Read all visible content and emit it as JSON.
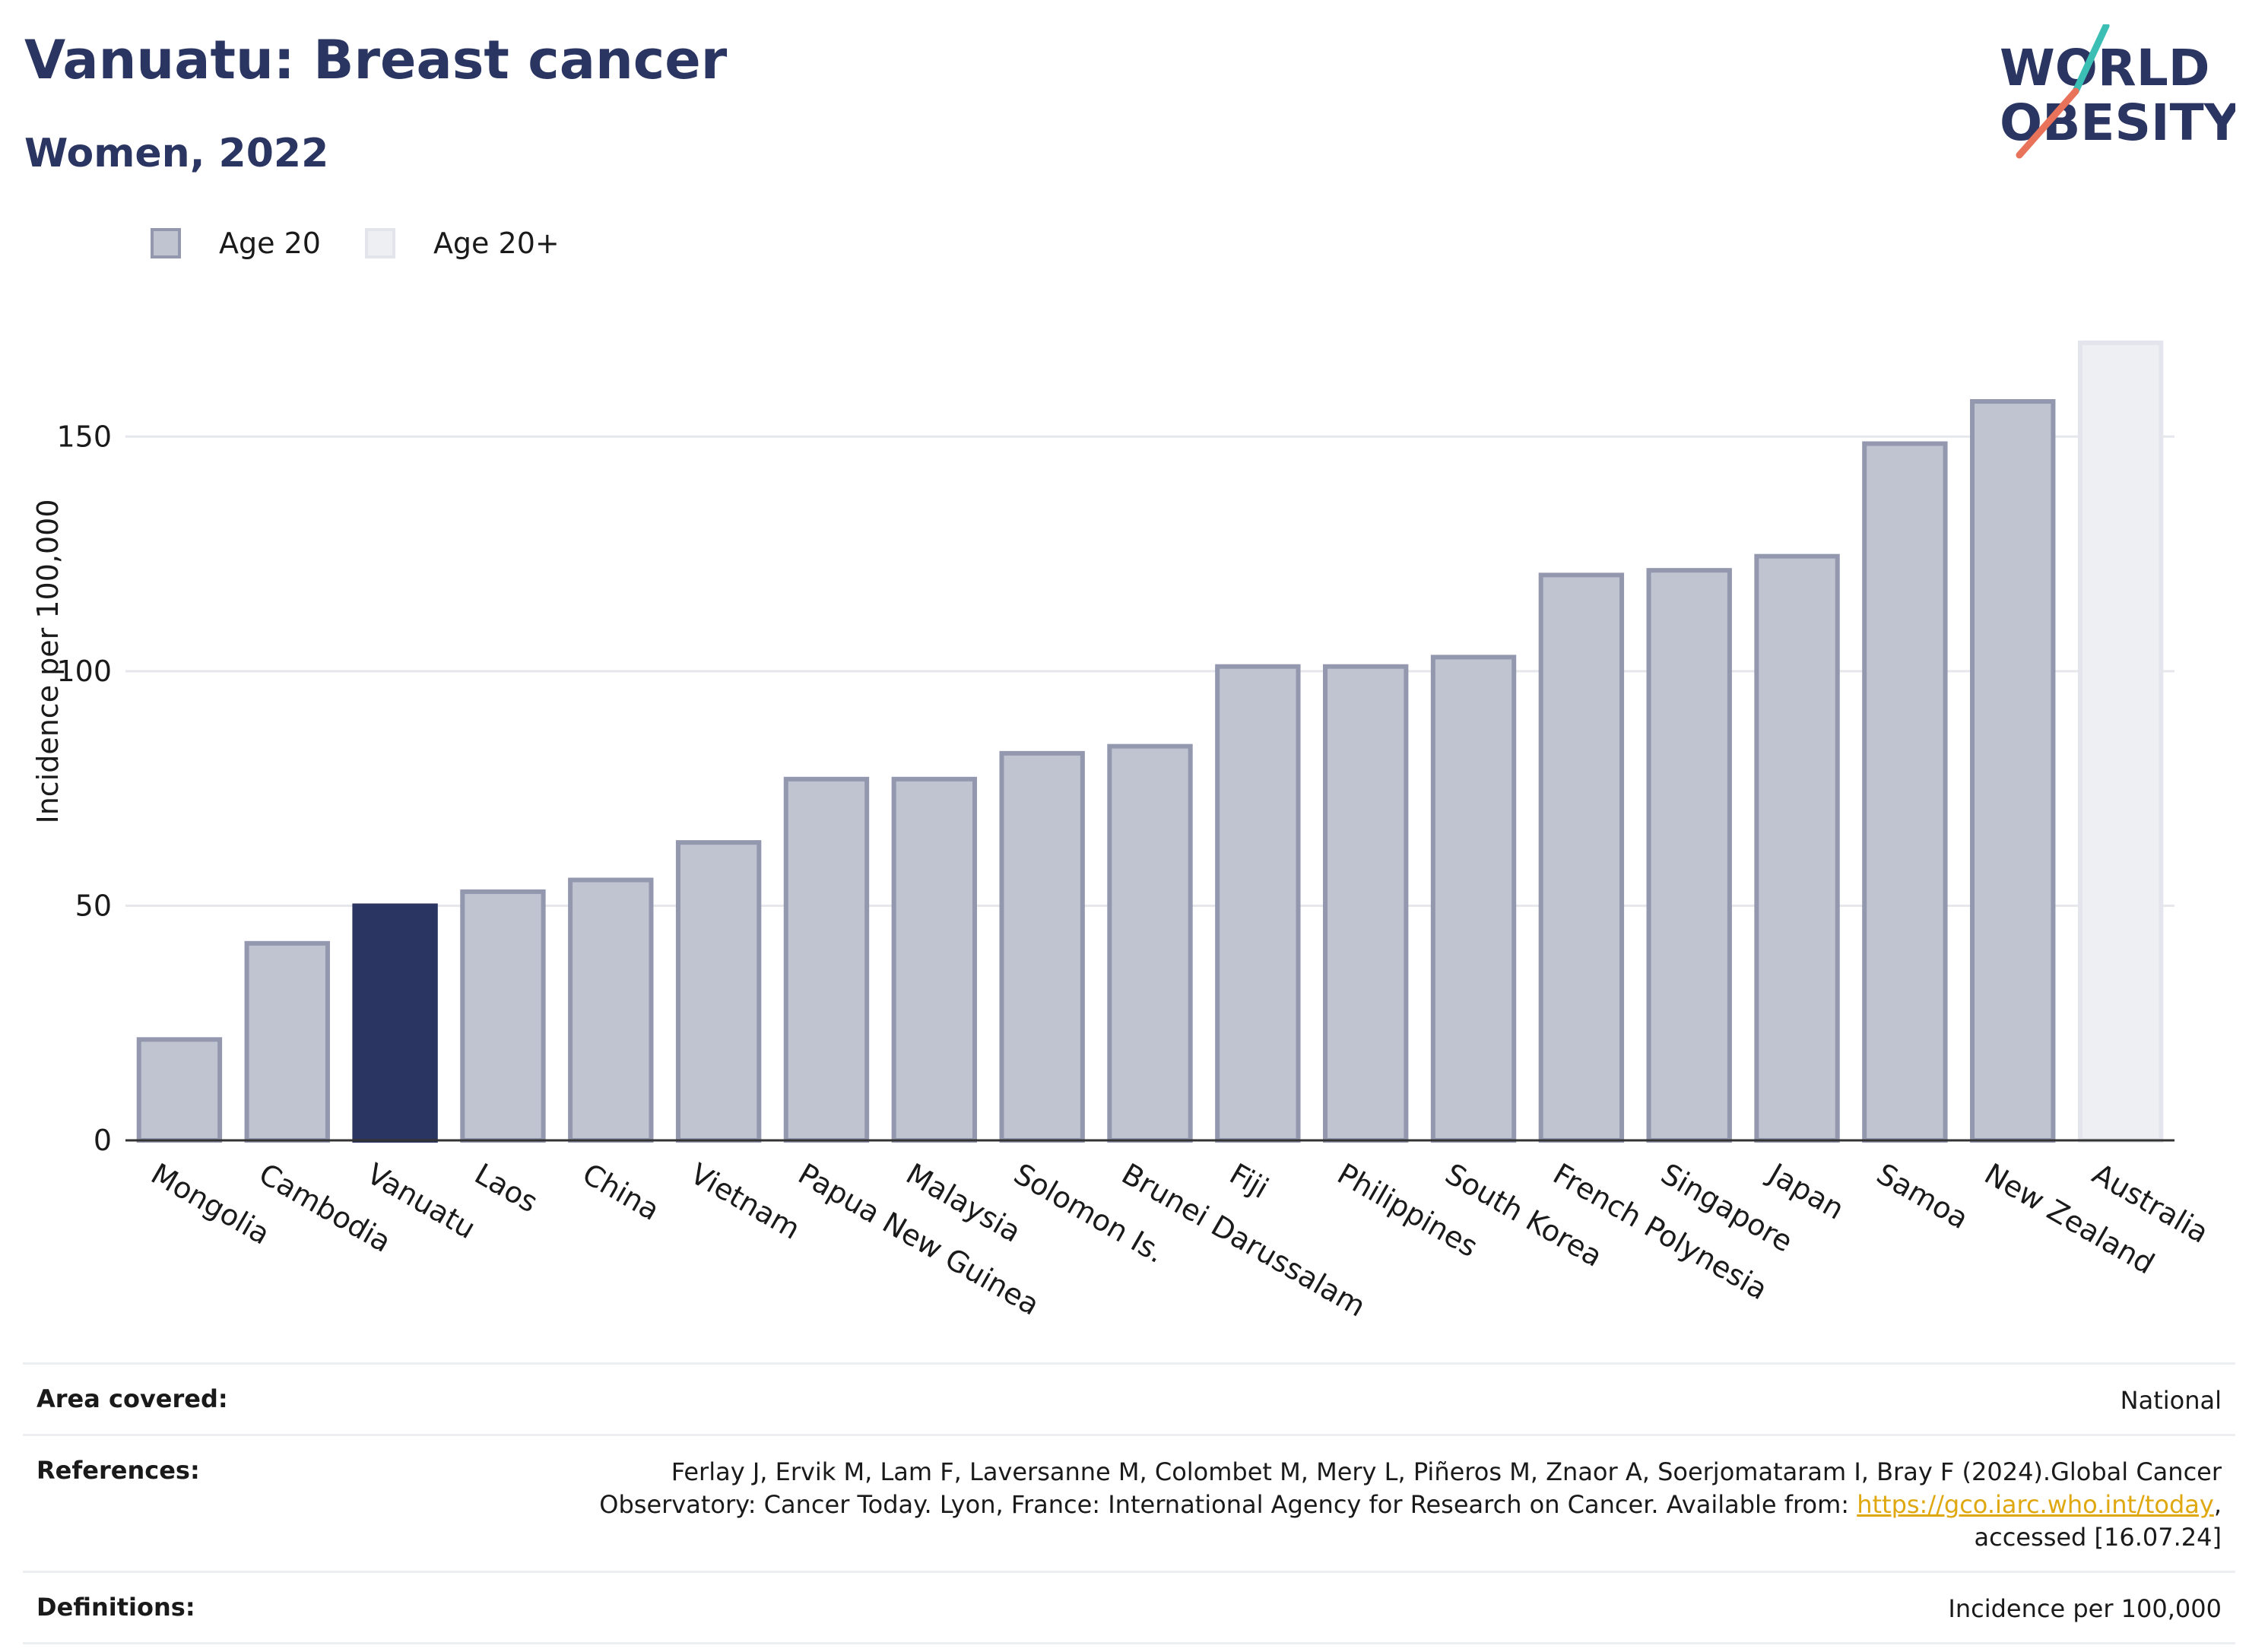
{
  "header": {
    "title": "Vanuatu: Breast cancer",
    "subtitle": "Women, 2022",
    "logo_line1": "WORLD",
    "logo_line2": "OBESITY"
  },
  "legend": [
    {
      "label": "Age 20",
      "color": "#c0c3d0"
    },
    {
      "label": "Age 20+",
      "color": "#eeeff3"
    }
  ],
  "chart_data": {
    "type": "bar",
    "title": "Vanuatu: Breast cancer",
    "subtitle": "Women, 2022",
    "ylabel": "Incidence per 100,000",
    "xlabel": "",
    "ylim": [
      0,
      175
    ],
    "yticks": [
      0,
      50,
      100,
      150
    ],
    "grid": true,
    "legend_position": "top-left",
    "categories": [
      "Mongolia",
      "Cambodia",
      "Vanuatu",
      "Laos",
      "China",
      "Vietnam",
      "Papua New Guinea",
      "Malaysia",
      "Solomon Is.",
      "Brunei Darussalam",
      "Fiji",
      "Philippines",
      "South Korea",
      "French Polynesia",
      "Singapore",
      "Japan",
      "Samoa",
      "New Zealand",
      "Australia"
    ],
    "values": [
      21.5,
      42,
      50,
      53,
      55.5,
      63.5,
      77,
      77,
      82.5,
      84,
      101,
      101,
      103,
      120.5,
      121.5,
      124.5,
      148.5,
      157.5,
      170
    ],
    "series_of_bar": [
      "Age 20",
      "Age 20",
      "Age 20",
      "Age 20",
      "Age 20",
      "Age 20",
      "Age 20",
      "Age 20",
      "Age 20",
      "Age 20",
      "Age 20",
      "Age 20",
      "Age 20",
      "Age 20",
      "Age 20",
      "Age 20",
      "Age 20",
      "Age 20",
      "Age 20+"
    ],
    "highlight": "Vanuatu",
    "colors": {
      "age20_fill": "#c0c3d0",
      "age20_stroke": "#9398af",
      "age20plus_fill": "#eeeff3",
      "age20plus_stroke": "#e4e5ec",
      "highlight_fill": "#2b3561"
    }
  },
  "info": {
    "area_label": "Area covered:",
    "area_value": "National",
    "references_label": "References:",
    "references_line1": "Ferlay J, Ervik M, Lam F, Laversanne M, Colombet M, Mery L, Piñeros M, Znaor A, Soerjomataram I, Bray F (2024).Global Cancer",
    "references_line2_pre": "Observatory: Cancer Today. Lyon, France: International Agency for Research on Cancer. Available from: ",
    "references_link": "https://gco.iarc.who.int/today",
    "references_line2_post": ",",
    "references_line3": "accessed [16.07.24]",
    "definitions_label": "Definitions:",
    "definitions_value": "Incidence per 100,000"
  }
}
